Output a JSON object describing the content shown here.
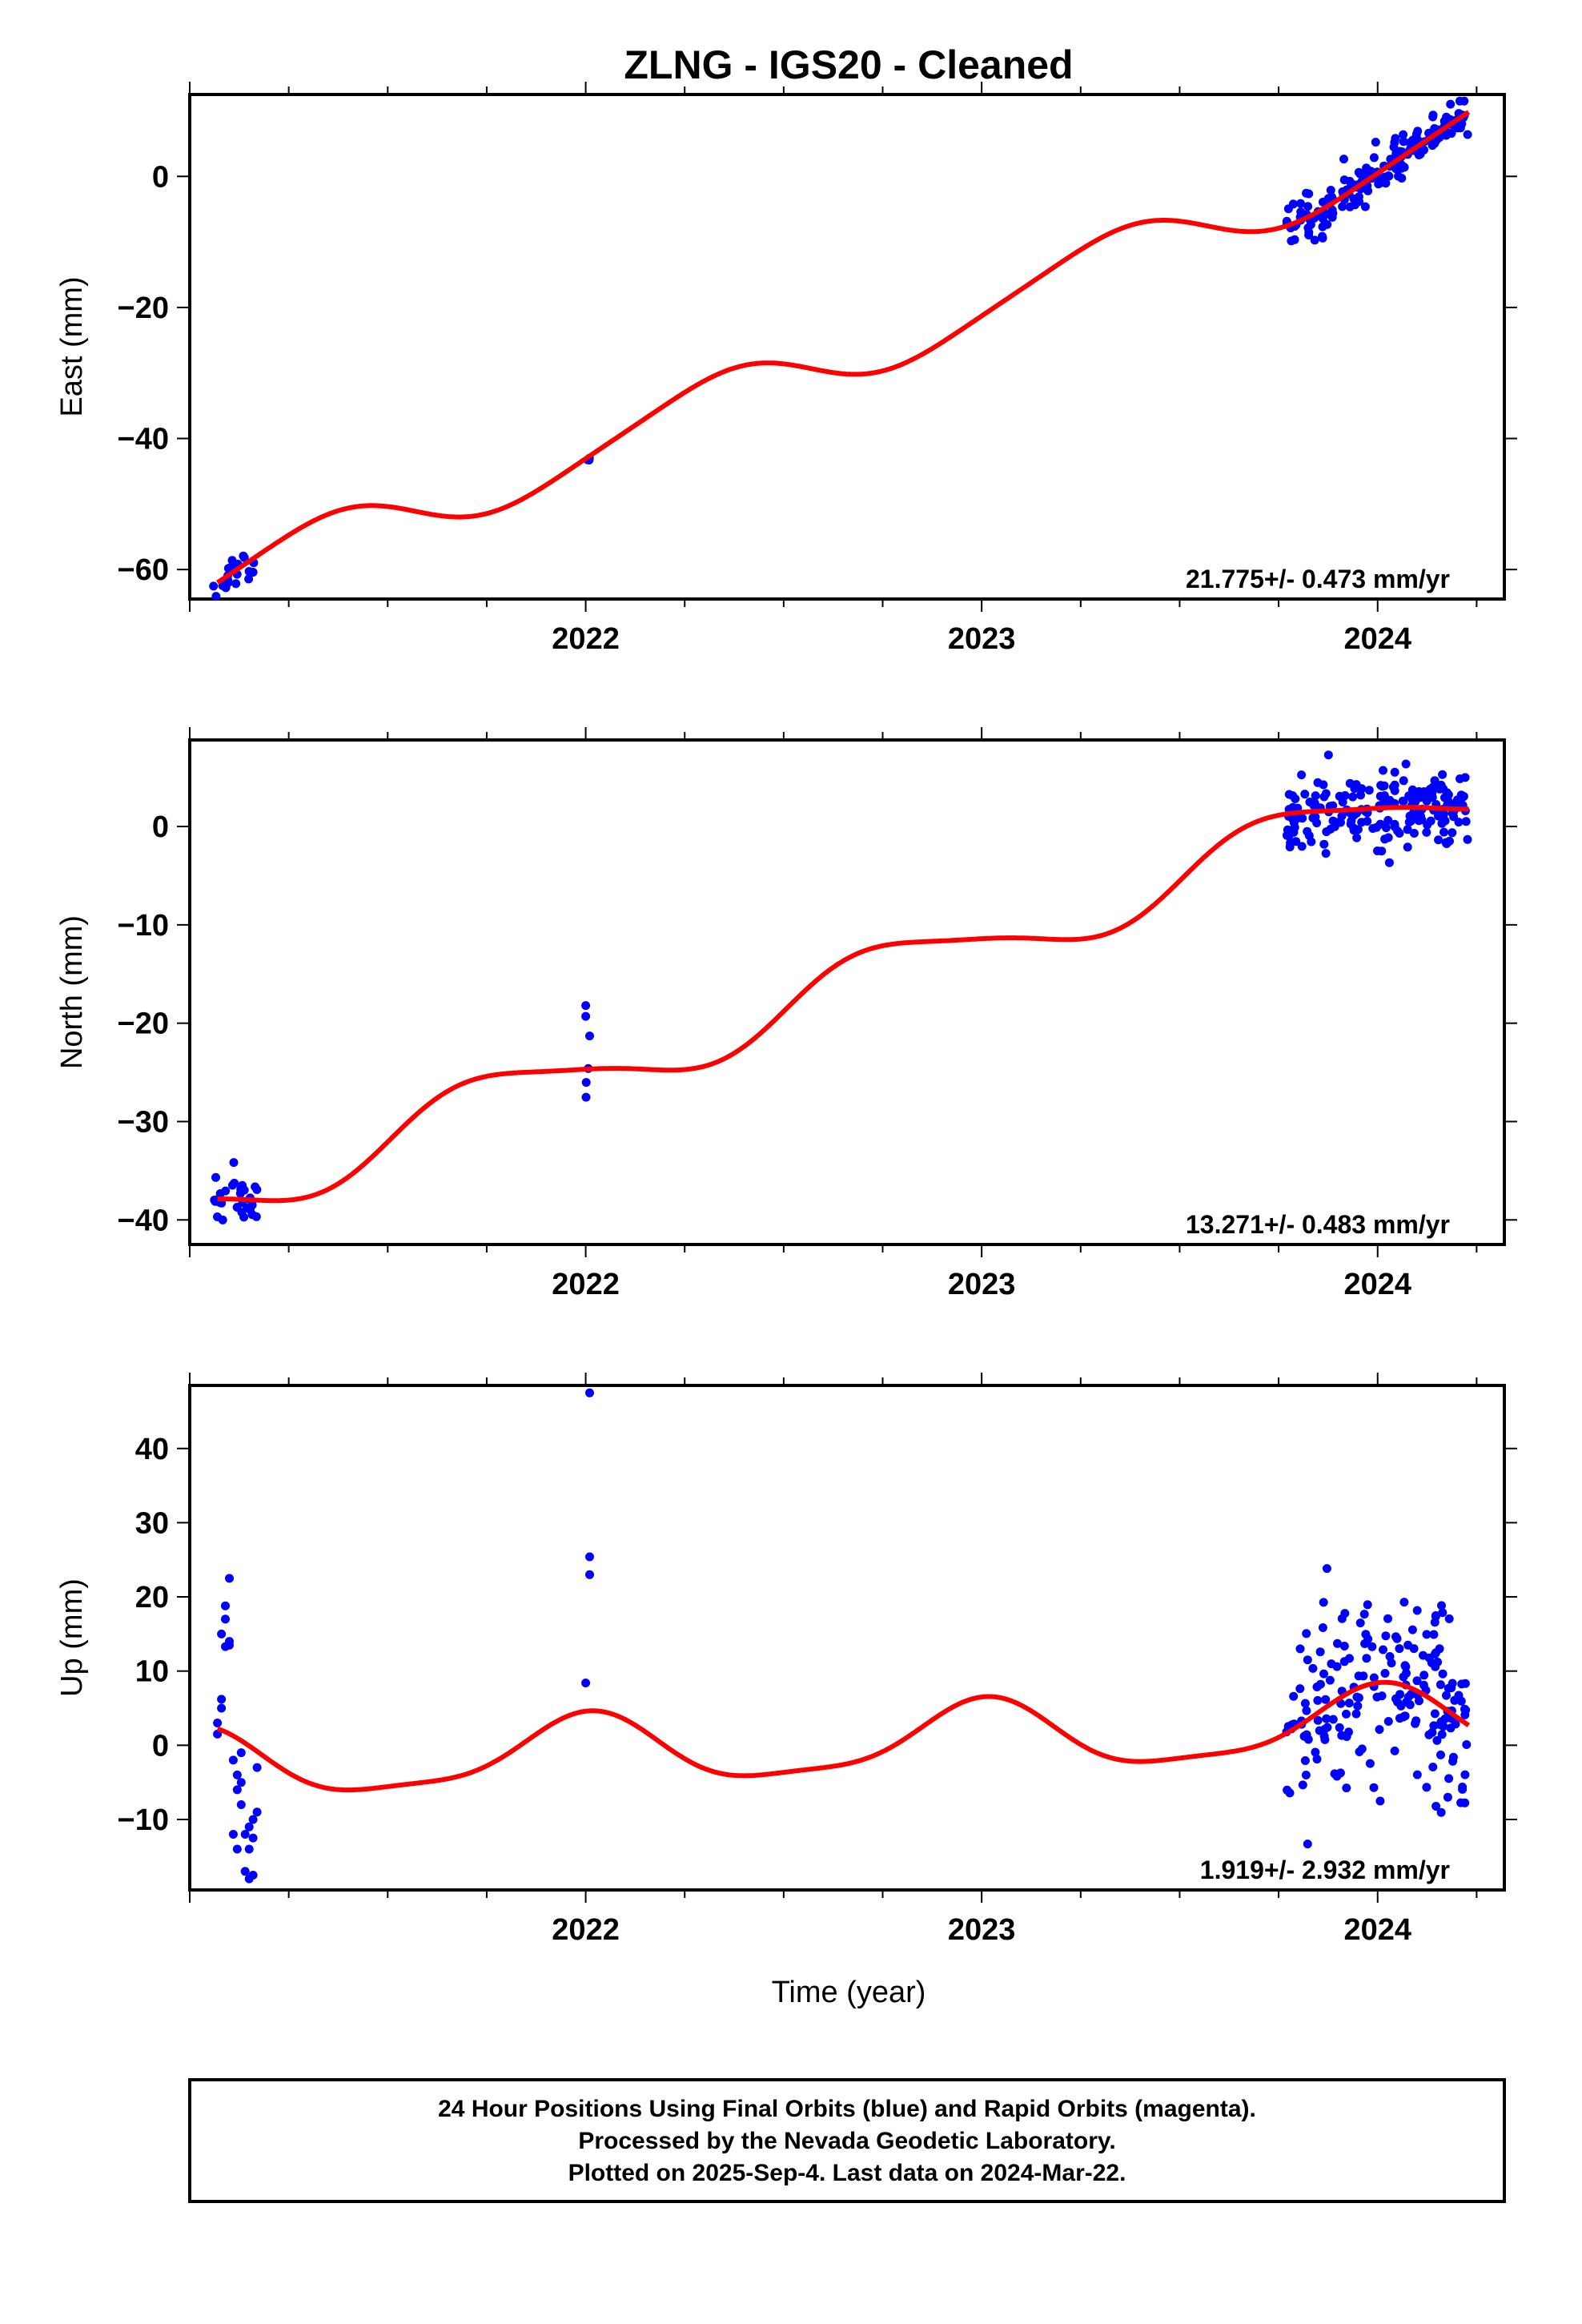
{
  "title": "ZLNG  - IGS20 - Cleaned",
  "xlabel": "Time (year)",
  "footer": {
    "lines": [
      "24 Hour Positions Using Final Orbits (blue) and Rapid Orbits (magenta).",
      "Processed by the Nevada Geodetic Laboratory.",
      "Plotted on 2025-Sep-4. Last data on 2024-Mar-22."
    ]
  },
  "colors": {
    "data": "#0000ff",
    "model": "#ff0000",
    "frame": "#000000"
  },
  "chart_data": [
    {
      "type": "scatter",
      "name": "east",
      "ylabel": "East (mm)",
      "rate_label": "21.775+/- 0.473 mm/yr",
      "xlim": [
        2021.0,
        2024.32
      ],
      "ylim": [
        -64.5,
        12.5
      ],
      "x_ticks": [
        2022,
        2023,
        2024
      ],
      "x_tick_labels": [
        "2022",
        "2023",
        "2024"
      ],
      "y_ticks": [
        0,
        -20,
        -40,
        -60
      ],
      "y_tick_labels": [
        "0",
        "−20",
        "−40",
        "−60"
      ],
      "model": {
        "rate": 21.775,
        "offset": 38.7,
        "ref_year": 2021.75,
        "a1": 4.2,
        "p1": 1.9,
        "a2": 0.7,
        "p2": 0.5
      },
      "clusters": [
        {
          "x0": 2021.06,
          "x1": 2021.17,
          "n": 22,
          "spread": 1.3
        },
        {
          "x0": 2022.0,
          "x1": 2022.01,
          "n": 3,
          "spread": 0.9
        },
        {
          "x0": 2023.77,
          "x1": 2024.23,
          "n": 180,
          "spread": 1.7
        }
      ]
    },
    {
      "type": "scatter",
      "name": "north",
      "ylabel": "North (mm)",
      "rate_label": "13.271+/- 0.483 mm/yr",
      "xlim": [
        2021.0,
        2024.32
      ],
      "ylim": [
        -42.5,
        8.8
      ],
      "x_ticks": [
        2022,
        2023,
        2024
      ],
      "x_tick_labels": [
        "2022",
        "2023",
        "2024"
      ],
      "y_ticks": [
        0,
        -10,
        -20,
        -30,
        -40
      ],
      "y_tick_labels": [
        "0",
        "−10",
        "−20",
        "−30",
        "−40"
      ],
      "model": {
        "rate": 13.271,
        "offset": 36.0,
        "ref_year": 2021.6,
        "a1": 3.1,
        "p1": 2.0,
        "a2": 0.6,
        "p2": 0.4
      },
      "clusters": [
        {
          "x0": 2021.06,
          "x1": 2021.17,
          "n": 30,
          "spread": 1.4
        },
        {
          "x0": 2022.0,
          "x1": 2022.01,
          "n": 3,
          "spread": 1.2
        },
        {
          "x0": 2023.77,
          "x1": 2024.23,
          "n": 200,
          "spread": 1.8
        }
      ],
      "extra_points": [
        [
          2022.0,
          -18.2
        ],
        [
          2022.0,
          -19.3
        ],
        [
          2022.01,
          -21.3
        ]
      ]
    },
    {
      "type": "scatter",
      "name": "up",
      "ylabel": "Up (mm)",
      "rate_label": "1.919+/- 2.932 mm/yr",
      "xlim": [
        2021.0,
        2024.32
      ],
      "ylim": [
        -19.5,
        48.5
      ],
      "x_ticks": [
        2022,
        2023,
        2024
      ],
      "x_tick_labels": [
        "2022",
        "2023",
        "2024"
      ],
      "y_ticks": [
        40,
        30,
        20,
        10,
        0,
        -10
      ],
      "y_tick_labels": [
        "40",
        "30",
        "20",
        "10",
        "0",
        "−10"
      ],
      "model": {
        "rate": 1.919,
        "offset": 0.0,
        "ref_year": 2022.5,
        "a1": 4.8,
        "p1": 0.4,
        "a2": 1.3,
        "p2": 2.2
      },
      "points": [
        [
          2021.07,
          1.5
        ],
        [
          2021.07,
          3.0
        ],
        [
          2021.08,
          5.0
        ],
        [
          2021.08,
          6.2
        ],
        [
          2021.08,
          15.0
        ],
        [
          2021.09,
          17.0
        ],
        [
          2021.09,
          18.8
        ],
        [
          2021.09,
          13.3
        ],
        [
          2021.1,
          14.0
        ],
        [
          2021.1,
          22.5
        ],
        [
          2021.1,
          13.5
        ],
        [
          2021.11,
          -2.0
        ],
        [
          2021.11,
          -12.0
        ],
        [
          2021.12,
          -4.0
        ],
        [
          2021.12,
          -14.0
        ],
        [
          2021.13,
          -1.0
        ],
        [
          2021.13,
          -5.0
        ],
        [
          2021.13,
          -8.0
        ],
        [
          2021.14,
          -17.0
        ],
        [
          2021.14,
          -12.0
        ],
        [
          2021.15,
          -18.0
        ],
        [
          2021.15,
          -14.0
        ],
        [
          2021.16,
          -10.0
        ],
        [
          2021.16,
          -17.5
        ],
        [
          2021.16,
          -12.5
        ],
        [
          2021.17,
          -9.0
        ],
        [
          2021.17,
          -3.0
        ],
        [
          2021.15,
          -11.0
        ],
        [
          2021.12,
          -6.0
        ],
        [
          2022.0,
          8.4
        ],
        [
          2022.01,
          23.0
        ],
        [
          2022.01,
          25.4
        ],
        [
          2022.01,
          47.5
        ]
      ],
      "clusters": [
        {
          "x0": 2023.77,
          "x1": 2024.23,
          "n": 190,
          "spread": 7.0
        }
      ]
    }
  ]
}
